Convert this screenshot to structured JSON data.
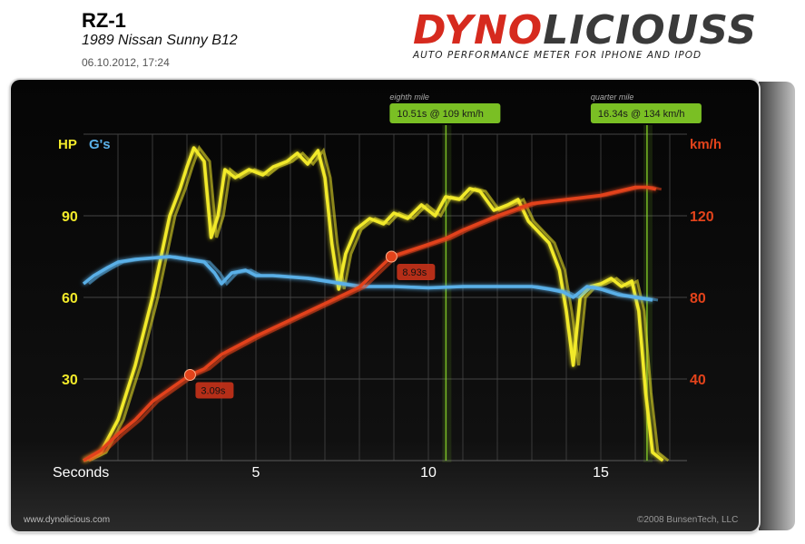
{
  "header": {
    "car_name": "RZ-1",
    "car_model": "1989 Nissan Sunny B12",
    "date": "06.10.2012, 17:24"
  },
  "logo": {
    "word_red": "DYNO",
    "word_gray": "LICIOUSS",
    "tagline": "AUTO PERFORMANCE METER FOR IPHONE AND IPOD"
  },
  "footer": {
    "website": "www.dynolicious.com",
    "copyright": "©2008 BunsenTech, LLC"
  },
  "colors": {
    "hp": "#f2ea2a",
    "gs": "#5ab0e8",
    "speed": "#e3431b",
    "marker_green": "#8fe02a"
  },
  "chart_data": {
    "type": "line",
    "xlabel": "Seconds",
    "x_ticks": [
      5,
      10,
      15
    ],
    "xlim": [
      0,
      17.5
    ],
    "left_axis": {
      "labels": [
        "HP",
        "G's"
      ],
      "ylim": [
        0,
        120
      ],
      "ticks": [
        30,
        60,
        90
      ]
    },
    "right_axis": {
      "label": "km/h",
      "ylim": [
        0,
        160
      ],
      "ticks": [
        40,
        80,
        120
      ]
    },
    "grid": true,
    "series": [
      {
        "name": "HP",
        "axis": "left",
        "points": [
          [
            0,
            0
          ],
          [
            0.5,
            3
          ],
          [
            1,
            15
          ],
          [
            1.5,
            35
          ],
          [
            2,
            60
          ],
          [
            2.5,
            90
          ],
          [
            2.8,
            100
          ],
          [
            3,
            108
          ],
          [
            3.2,
            115
          ],
          [
            3.5,
            110
          ],
          [
            3.7,
            82
          ],
          [
            3.9,
            90
          ],
          [
            4.1,
            107
          ],
          [
            4.4,
            104
          ],
          [
            4.8,
            107
          ],
          [
            5.2,
            105
          ],
          [
            5.5,
            108
          ],
          [
            5.9,
            110
          ],
          [
            6.2,
            113
          ],
          [
            6.5,
            109
          ],
          [
            6.8,
            114
          ],
          [
            7,
            104
          ],
          [
            7.2,
            80
          ],
          [
            7.4,
            63
          ],
          [
            7.6,
            76
          ],
          [
            7.9,
            85
          ],
          [
            8.3,
            89
          ],
          [
            8.7,
            87
          ],
          [
            9,
            91
          ],
          [
            9.4,
            89
          ],
          [
            9.8,
            94
          ],
          [
            10.2,
            90
          ],
          [
            10.5,
            97
          ],
          [
            10.9,
            96
          ],
          [
            11.2,
            100
          ],
          [
            11.5,
            99
          ],
          [
            11.9,
            92
          ],
          [
            12.3,
            94
          ],
          [
            12.6,
            96
          ],
          [
            12.9,
            88
          ],
          [
            13.2,
            84
          ],
          [
            13.5,
            80
          ],
          [
            13.8,
            70
          ],
          [
            14,
            55
          ],
          [
            14.2,
            35
          ],
          [
            14.4,
            60
          ],
          [
            14.7,
            64
          ],
          [
            15,
            65
          ],
          [
            15.3,
            67
          ],
          [
            15.6,
            64
          ],
          [
            15.9,
            66
          ],
          [
            16.1,
            55
          ],
          [
            16.3,
            25
          ],
          [
            16.5,
            3
          ],
          [
            16.8,
            0
          ]
        ]
      },
      {
        "name": "G's",
        "axis": "left",
        "points": [
          [
            0,
            65
          ],
          [
            0.3,
            68
          ],
          [
            0.7,
            71
          ],
          [
            1,
            73
          ],
          [
            1.5,
            74
          ],
          [
            2,
            74.5
          ],
          [
            2.5,
            75
          ],
          [
            3,
            74
          ],
          [
            3.5,
            73
          ],
          [
            3.8,
            69
          ],
          [
            4,
            65
          ],
          [
            4.3,
            69
          ],
          [
            4.7,
            70
          ],
          [
            5,
            68
          ],
          [
            5.5,
            68
          ],
          [
            6,
            67.5
          ],
          [
            6.5,
            67
          ],
          [
            7,
            66
          ],
          [
            7.5,
            65
          ],
          [
            8,
            64
          ],
          [
            9,
            64
          ],
          [
            10,
            63.5
          ],
          [
            11,
            64
          ],
          [
            12,
            64
          ],
          [
            13,
            64
          ],
          [
            13.5,
            63
          ],
          [
            13.9,
            62
          ],
          [
            14.2,
            60
          ],
          [
            14.6,
            64
          ],
          [
            15,
            63
          ],
          [
            15.5,
            61
          ],
          [
            16,
            60
          ],
          [
            16.5,
            59
          ]
        ]
      },
      {
        "name": "km/h",
        "axis": "right",
        "points": [
          [
            0,
            0
          ],
          [
            0.5,
            5
          ],
          [
            1,
            13
          ],
          [
            1.5,
            20
          ],
          [
            2,
            29
          ],
          [
            2.5,
            35
          ],
          [
            3.09,
            42
          ],
          [
            3.5,
            45
          ],
          [
            4,
            52
          ],
          [
            5,
            61
          ],
          [
            6,
            69
          ],
          [
            7,
            77
          ],
          [
            8,
            85
          ],
          [
            8.93,
            100
          ],
          [
            10,
            106
          ],
          [
            10.51,
            109
          ],
          [
            11,
            113
          ],
          [
            12,
            120
          ],
          [
            13,
            126
          ],
          [
            14,
            128
          ],
          [
            14.5,
            129
          ],
          [
            15,
            130
          ],
          [
            15.5,
            132
          ],
          [
            16,
            134
          ],
          [
            16.34,
            134
          ],
          [
            16.6,
            133
          ]
        ]
      }
    ],
    "markers": [
      {
        "time_label": "3.09s",
        "t": 3.09,
        "speed": 42
      },
      {
        "time_label": "8.93s",
        "t": 8.93,
        "speed": 100
      }
    ],
    "distance_markers": [
      {
        "name": "eighth mile",
        "label": "10.51s @ 109 km/h",
        "t": 10.51
      },
      {
        "name": "quarter mile",
        "label": "16.34s @ 134 km/h",
        "t": 16.34
      }
    ]
  }
}
